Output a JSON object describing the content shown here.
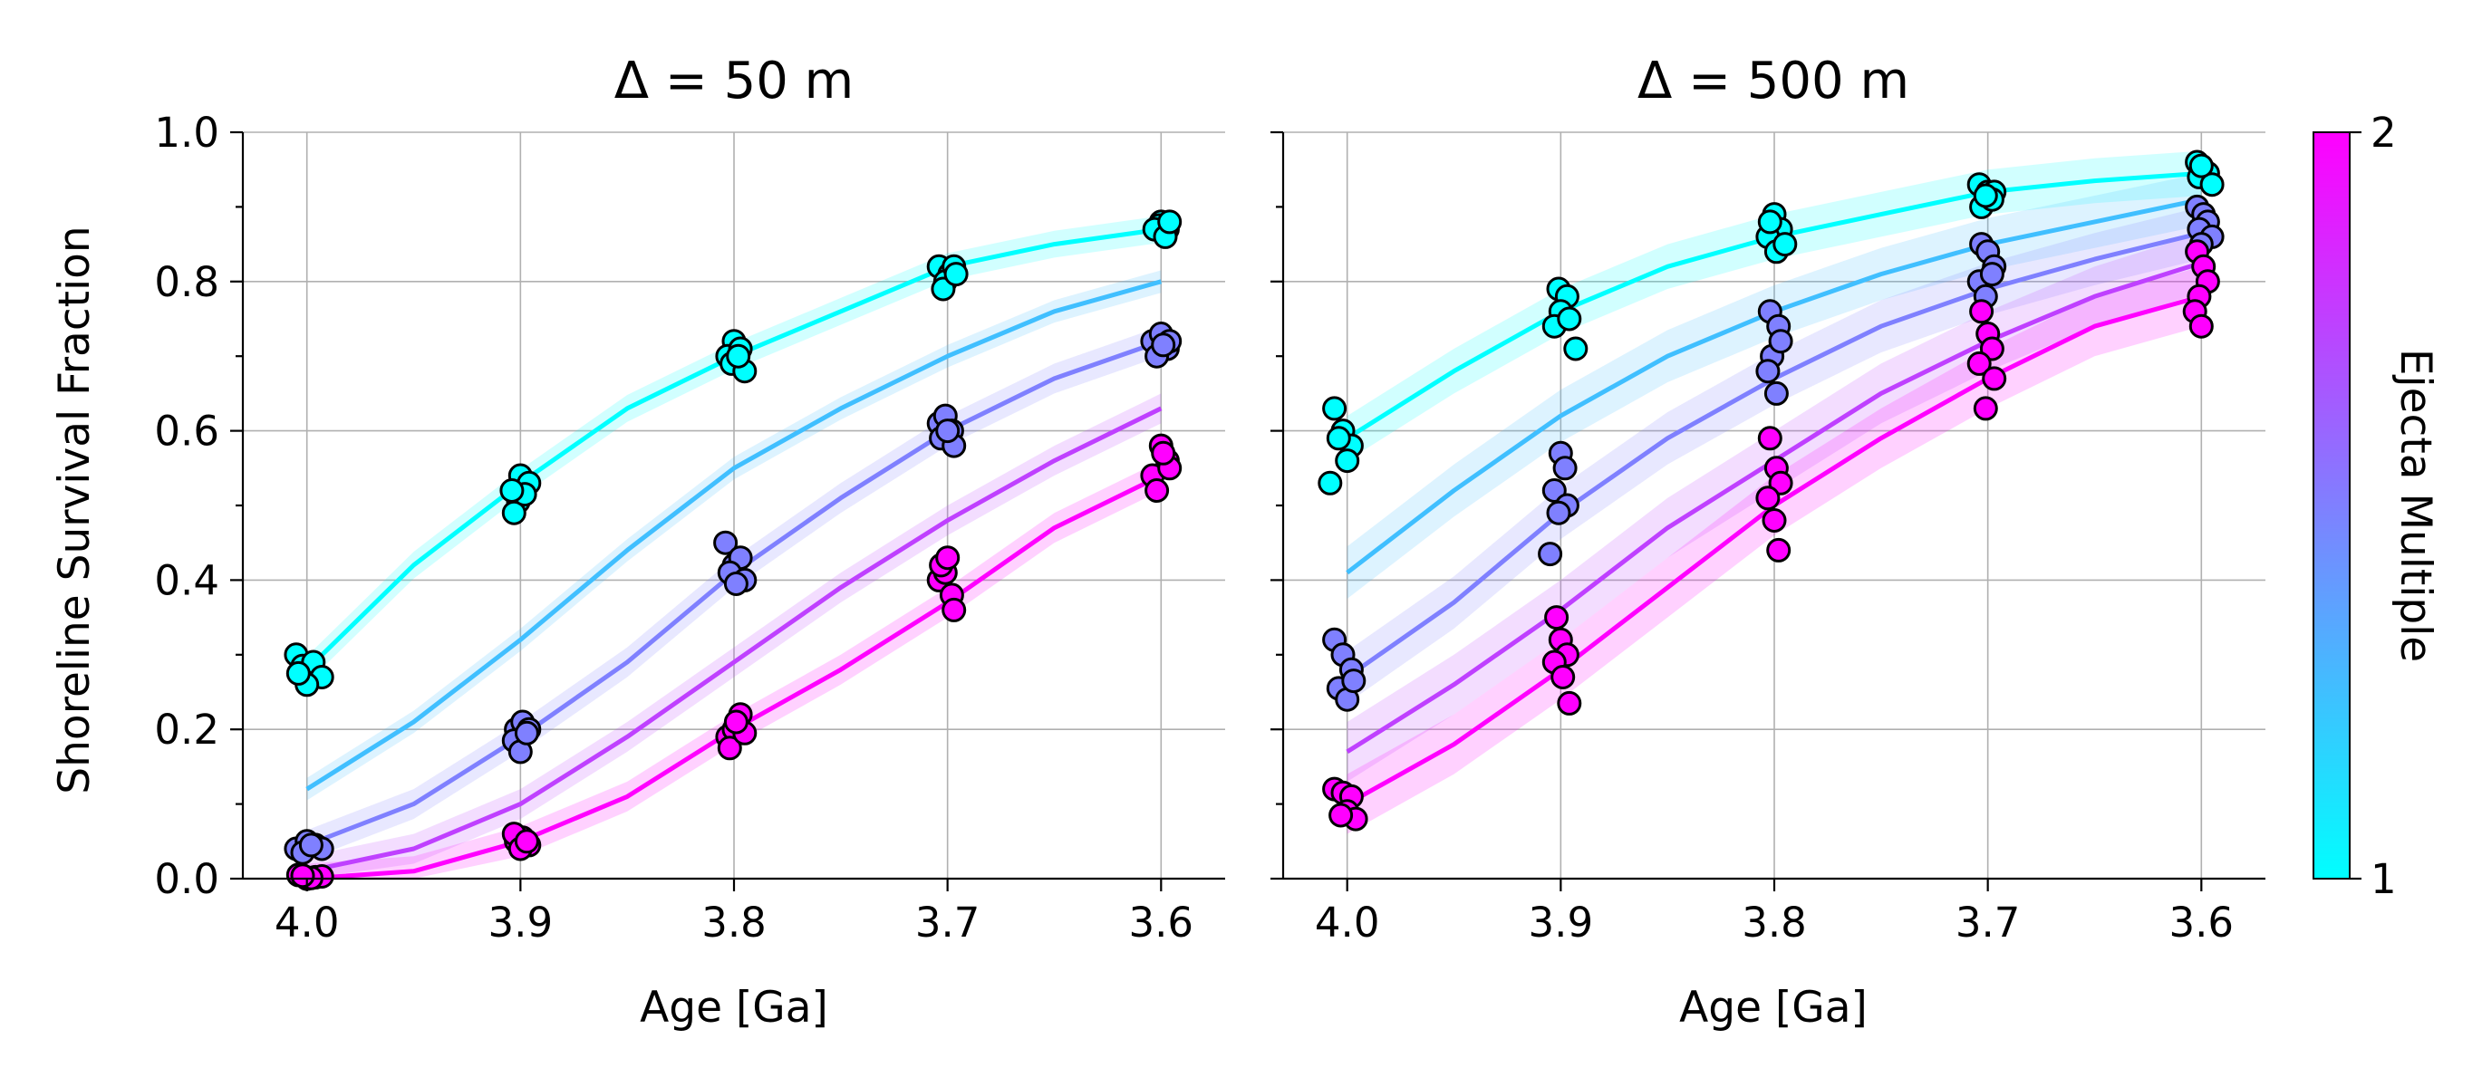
{
  "chart_data": [
    {
      "type": "line",
      "title": "Δ = 50 m",
      "xlabel": "Age [Ga]",
      "ylabel": "Shoreline Survival Fraction",
      "xlim": [
        4.03,
        3.57
      ],
      "ylim": [
        0.0,
        1.0
      ],
      "xticks": [
        "4.0",
        "3.9",
        "3.8",
        "3.7",
        "3.6"
      ],
      "yticks": [
        "0.0",
        "0.2",
        "0.4",
        "0.6",
        "0.8",
        "1.0"
      ],
      "grid": true,
      "series": [
        {
          "name": "Ejecta Multiple 1.0",
          "color": "#00ffff",
          "x": [
            4.0,
            3.95,
            3.9,
            3.85,
            3.8,
            3.75,
            3.7,
            3.65,
            3.6
          ],
          "y": [
            0.28,
            0.42,
            0.53,
            0.63,
            0.7,
            0.76,
            0.82,
            0.85,
            0.87
          ],
          "band": 0.018,
          "points": [
            [
              4.005,
              0.3
            ],
            [
              4.002,
              0.285
            ],
            [
              3.997,
              0.29
            ],
            [
              3.993,
              0.27
            ],
            [
              4.0,
              0.26
            ],
            [
              4.004,
              0.275
            ],
            [
              3.9,
              0.54
            ],
            [
              3.896,
              0.53
            ],
            [
              3.901,
              0.505
            ],
            [
              3.903,
              0.49
            ],
            [
              3.898,
              0.515
            ],
            [
              3.904,
              0.52
            ],
            [
              3.8,
              0.72
            ],
            [
              3.803,
              0.7
            ],
            [
              3.797,
              0.71
            ],
            [
              3.801,
              0.69
            ],
            [
              3.795,
              0.68
            ],
            [
              3.798,
              0.7
            ],
            [
              3.704,
              0.82
            ],
            [
              3.699,
              0.81
            ],
            [
              3.701,
              0.8
            ],
            [
              3.697,
              0.82
            ],
            [
              3.702,
              0.79
            ],
            [
              3.696,
              0.81
            ],
            [
              3.6,
              0.88
            ],
            [
              3.597,
              0.87
            ],
            [
              3.601,
              0.875
            ],
            [
              3.603,
              0.87
            ],
            [
              3.598,
              0.86
            ],
            [
              3.596,
              0.88
            ]
          ]
        },
        {
          "name": "Ejecta Multiple 1.25",
          "color": "#40bfff",
          "x": [
            4.0,
            3.95,
            3.9,
            3.85,
            3.8,
            3.75,
            3.7,
            3.65,
            3.6
          ],
          "y": [
            0.12,
            0.21,
            0.32,
            0.44,
            0.55,
            0.63,
            0.7,
            0.76,
            0.8
          ],
          "band": 0.015,
          "points": []
        },
        {
          "name": "Ejecta Multiple 1.5",
          "color": "#7f80ff",
          "x": [
            4.0,
            3.95,
            3.9,
            3.85,
            3.8,
            3.75,
            3.7,
            3.65,
            3.6
          ],
          "y": [
            0.045,
            0.1,
            0.19,
            0.29,
            0.41,
            0.51,
            0.6,
            0.67,
            0.72
          ],
          "band": 0.02,
          "points": [
            [
              4.005,
              0.04
            ],
            [
              4.0,
              0.05
            ],
            [
              3.996,
              0.045
            ],
            [
              3.993,
              0.04
            ],
            [
              4.002,
              0.035
            ],
            [
              3.998,
              0.045
            ],
            [
              3.902,
              0.2
            ],
            [
              3.899,
              0.21
            ],
            [
              3.896,
              0.2
            ],
            [
              3.903,
              0.185
            ],
            [
              3.9,
              0.17
            ],
            [
              3.897,
              0.195
            ],
            [
              3.804,
              0.45
            ],
            [
              3.8,
              0.42
            ],
            [
              3.797,
              0.43
            ],
            [
              3.802,
              0.41
            ],
            [
              3.795,
              0.4
            ],
            [
              3.799,
              0.395
            ],
            [
              3.704,
              0.61
            ],
            [
              3.701,
              0.62
            ],
            [
              3.698,
              0.6
            ],
            [
              3.703,
              0.59
            ],
            [
              3.697,
              0.58
            ],
            [
              3.7,
              0.6
            ],
            [
              3.604,
              0.72
            ],
            [
              3.6,
              0.73
            ],
            [
              3.597,
              0.71
            ],
            [
              3.602,
              0.7
            ],
            [
              3.596,
              0.72
            ],
            [
              3.599,
              0.715
            ]
          ]
        },
        {
          "name": "Ejecta Multiple 1.75",
          "color": "#bf40ff",
          "x": [
            4.0,
            3.95,
            3.9,
            3.85,
            3.8,
            3.75,
            3.7,
            3.65,
            3.6
          ],
          "y": [
            0.01,
            0.04,
            0.1,
            0.19,
            0.29,
            0.39,
            0.48,
            0.56,
            0.63
          ],
          "band": 0.02,
          "points": []
        },
        {
          "name": "Ejecta Multiple 2.0",
          "color": "#ff00ff",
          "x": [
            4.0,
            3.95,
            3.9,
            3.85,
            3.8,
            3.75,
            3.7,
            3.65,
            3.6
          ],
          "y": [
            0.0,
            0.01,
            0.05,
            0.11,
            0.2,
            0.28,
            0.37,
            0.47,
            0.54
          ],
          "band": 0.02,
          "points": [
            [
              4.004,
              0.005
            ],
            [
              4.0,
              0.0
            ],
            [
              3.996,
              0.002
            ],
            [
              3.993,
              0.003
            ],
            [
              3.998,
              0.001
            ],
            [
              4.002,
              0.004
            ],
            [
              3.902,
              0.05
            ],
            [
              3.899,
              0.055
            ],
            [
              3.896,
              0.045
            ],
            [
              3.903,
              0.06
            ],
            [
              3.9,
              0.04
            ],
            [
              3.897,
              0.05
            ],
            [
              3.803,
              0.19
            ],
            [
              3.8,
              0.2
            ],
            [
              3.797,
              0.22
            ],
            [
              3.802,
              0.175
            ],
            [
              3.795,
              0.195
            ],
            [
              3.799,
              0.21
            ],
            [
              3.704,
              0.4
            ],
            [
              3.701,
              0.41
            ],
            [
              3.698,
              0.38
            ],
            [
              3.703,
              0.42
            ],
            [
              3.697,
              0.36
            ],
            [
              3.7,
              0.43
            ],
            [
              3.604,
              0.54
            ],
            [
              3.6,
              0.58
            ],
            [
              3.597,
              0.56
            ],
            [
              3.602,
              0.52
            ],
            [
              3.596,
              0.55
            ],
            [
              3.599,
              0.57
            ]
          ]
        }
      ]
    },
    {
      "type": "line",
      "title": "Δ = 500 m",
      "xlabel": "Age [Ga]",
      "ylabel": "",
      "xlim": [
        4.03,
        3.57
      ],
      "ylim": [
        0.0,
        1.0
      ],
      "xticks": [
        "4.0",
        "3.9",
        "3.8",
        "3.7",
        "3.6"
      ],
      "yticks": [],
      "grid": true,
      "series": [
        {
          "name": "Ejecta Multiple 1.0",
          "color": "#00ffff",
          "x": [
            4.0,
            3.95,
            3.9,
            3.85,
            3.8,
            3.75,
            3.7,
            3.65,
            3.6
          ],
          "y": [
            0.59,
            0.68,
            0.76,
            0.82,
            0.86,
            0.89,
            0.92,
            0.935,
            0.945
          ],
          "band": 0.03,
          "points": [
            [
              4.006,
              0.63
            ],
            [
              4.002,
              0.6
            ],
            [
              3.998,
              0.58
            ],
            [
              4.0,
              0.56
            ],
            [
              4.004,
              0.59
            ],
            [
              4.008,
              0.53
            ],
            [
              3.901,
              0.79
            ],
            [
              3.897,
              0.78
            ],
            [
              3.9,
              0.76
            ],
            [
              3.903,
              0.74
            ],
            [
              3.896,
              0.75
            ],
            [
              3.893,
              0.71
            ],
            [
              3.8,
              0.89
            ],
            [
              3.797,
              0.87
            ],
            [
              3.803,
              0.86
            ],
            [
              3.799,
              0.84
            ],
            [
              3.795,
              0.85
            ],
            [
              3.802,
              0.88
            ],
            [
              3.704,
              0.93
            ],
            [
              3.7,
              0.92
            ],
            [
              3.697,
              0.92
            ],
            [
              3.703,
              0.9
            ],
            [
              3.698,
              0.91
            ],
            [
              3.701,
              0.915
            ],
            [
              3.602,
              0.96
            ],
            [
              3.599,
              0.95
            ],
            [
              3.597,
              0.945
            ],
            [
              3.601,
              0.94
            ],
            [
              3.595,
              0.93
            ],
            [
              3.6,
              0.955
            ]
          ]
        },
        {
          "name": "Ejecta Multiple 1.25",
          "color": "#40bfff",
          "x": [
            4.0,
            3.95,
            3.9,
            3.85,
            3.8,
            3.75,
            3.7,
            3.65,
            3.6
          ],
          "y": [
            0.41,
            0.52,
            0.62,
            0.7,
            0.76,
            0.81,
            0.85,
            0.88,
            0.91
          ],
          "band": 0.035,
          "points": []
        },
        {
          "name": "Ejecta Multiple 1.5",
          "color": "#7f80ff",
          "x": [
            4.0,
            3.95,
            3.9,
            3.85,
            3.8,
            3.75,
            3.7,
            3.65,
            3.6
          ],
          "y": [
            0.27,
            0.37,
            0.49,
            0.59,
            0.67,
            0.74,
            0.79,
            0.83,
            0.865
          ],
          "band": 0.035,
          "points": [
            [
              4.006,
              0.32
            ],
            [
              4.002,
              0.3
            ],
            [
              3.998,
              0.28
            ],
            [
              4.004,
              0.255
            ],
            [
              4.0,
              0.24
            ],
            [
              3.997,
              0.265
            ],
            [
              3.9,
              0.57
            ],
            [
              3.898,
              0.55
            ],
            [
              3.903,
              0.52
            ],
            [
              3.897,
              0.5
            ],
            [
              3.901,
              0.49
            ],
            [
              3.905,
              0.435
            ],
            [
              3.802,
              0.76
            ],
            [
              3.798,
              0.74
            ],
            [
              3.801,
              0.7
            ],
            [
              3.797,
              0.72
            ],
            [
              3.803,
              0.68
            ],
            [
              3.799,
              0.65
            ],
            [
              3.703,
              0.85
            ],
            [
              3.7,
              0.84
            ],
            [
              3.697,
              0.82
            ],
            [
              3.704,
              0.8
            ],
            [
              3.698,
              0.81
            ],
            [
              3.701,
              0.78
            ],
            [
              3.602,
              0.9
            ],
            [
              3.599,
              0.89
            ],
            [
              3.597,
              0.88
            ],
            [
              3.601,
              0.87
            ],
            [
              3.595,
              0.86
            ],
            [
              3.6,
              0.85
            ]
          ]
        },
        {
          "name": "Ejecta Multiple 1.75",
          "color": "#bf40ff",
          "x": [
            4.0,
            3.95,
            3.9,
            3.85,
            3.8,
            3.75,
            3.7,
            3.65,
            3.6
          ],
          "y": [
            0.17,
            0.26,
            0.36,
            0.47,
            0.56,
            0.65,
            0.72,
            0.78,
            0.825
          ],
          "band": 0.04,
          "points": []
        },
        {
          "name": "Ejecta Multiple 2.0",
          "color": "#ff00ff",
          "x": [
            4.0,
            3.95,
            3.9,
            3.85,
            3.8,
            3.75,
            3.7,
            3.65,
            3.6
          ],
          "y": [
            0.1,
            0.18,
            0.28,
            0.39,
            0.5,
            0.59,
            0.67,
            0.74,
            0.78
          ],
          "band": 0.04,
          "points": [
            [
              4.006,
              0.12
            ],
            [
              4.002,
              0.115
            ],
            [
              3.998,
              0.11
            ],
            [
              4.0,
              0.09
            ],
            [
              3.996,
              0.08
            ],
            [
              4.003,
              0.085
            ],
            [
              3.902,
              0.35
            ],
            [
              3.9,
              0.32
            ],
            [
              3.897,
              0.3
            ],
            [
              3.903,
              0.29
            ],
            [
              3.899,
              0.27
            ],
            [
              3.896,
              0.235
            ],
            [
              3.802,
              0.59
            ],
            [
              3.799,
              0.55
            ],
            [
              3.797,
              0.53
            ],
            [
              3.803,
              0.51
            ],
            [
              3.8,
              0.48
            ],
            [
              3.798,
              0.44
            ],
            [
              3.703,
              0.76
            ],
            [
              3.7,
              0.73
            ],
            [
              3.698,
              0.71
            ],
            [
              3.704,
              0.69
            ],
            [
              3.697,
              0.67
            ],
            [
              3.701,
              0.63
            ],
            [
              3.602,
              0.84
            ],
            [
              3.599,
              0.82
            ],
            [
              3.597,
              0.8
            ],
            [
              3.601,
              0.78
            ],
            [
              3.603,
              0.76
            ],
            [
              3.6,
              0.74
            ]
          ]
        }
      ]
    }
  ],
  "colorbar": {
    "label": "Ejecta Multiple",
    "min_label": "1",
    "max_label": "2",
    "color_min": "#00ffff",
    "color_max": "#ff00ff"
  }
}
